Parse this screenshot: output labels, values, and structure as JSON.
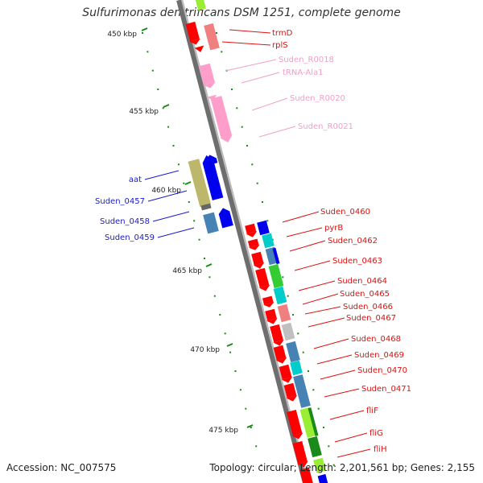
{
  "title": "Sulfurimonas denitrificans DSM 1251, complete genome",
  "accession": "Accession: NC_007575",
  "stats": "Topology: circular; Length: 2,201,561 bp; Genes: 2,155",
  "ticks": [
    "450 kbp",
    "455 kbp",
    "460 kbp",
    "465 kbp",
    "470 kbp",
    "475 kbp"
  ],
  "colors": {
    "backbone": "#8a8a8a",
    "tick": "#1a8a1a",
    "label_red": "#dd1111",
    "label_pink": "#f0a0c8",
    "label_blue": "#1a1acc",
    "cds_red": "#ff0000",
    "rna_pink": "#ff9ecb",
    "cds_blue": "#0000ee",
    "steel_blue": "#4682b4",
    "cyan": "#00cccc",
    "light_red": "#f08080",
    "green": "#33cc33",
    "dark_green": "#1a8a1a",
    "yellow_green": "#99ee33",
    "khaki": "#bdb76b",
    "silver": "#c0c0c0"
  },
  "genes_right": [
    {
      "label": "trmD",
      "color": "red"
    },
    {
      "label": "rplS",
      "color": "red"
    },
    {
      "label": "Suden_R0018",
      "color": "pink"
    },
    {
      "label": "tRNA-Ala1",
      "color": "pink"
    },
    {
      "label": "Suden_R0020",
      "color": "pink"
    },
    {
      "label": "Suden_R0021",
      "color": "pink"
    },
    {
      "label": "Suden_0460",
      "color": "red"
    },
    {
      "label": "pyrB",
      "color": "red"
    },
    {
      "label": "Suden_0462",
      "color": "red"
    },
    {
      "label": "Suden_0463",
      "color": "red"
    },
    {
      "label": "Suden_0464",
      "color": "red"
    },
    {
      "label": "Suden_0465",
      "color": "red"
    },
    {
      "label": "Suden_0466",
      "color": "red"
    },
    {
      "label": "Suden_0467",
      "color": "red"
    },
    {
      "label": "Suden_0468",
      "color": "red"
    },
    {
      "label": "Suden_0469",
      "color": "red"
    },
    {
      "label": "Suden_0470",
      "color": "red"
    },
    {
      "label": "Suden_0471",
      "color": "red"
    },
    {
      "label": "fliF",
      "color": "red"
    },
    {
      "label": "fliG",
      "color": "red"
    },
    {
      "label": "fliH",
      "color": "red"
    }
  ],
  "genes_left": [
    {
      "label": "aat",
      "color": "blue"
    },
    {
      "label": "Suden_0457",
      "color": "blue"
    },
    {
      "label": "Suden_0458",
      "color": "blue"
    },
    {
      "label": "Suden_0459",
      "color": "blue"
    }
  ]
}
